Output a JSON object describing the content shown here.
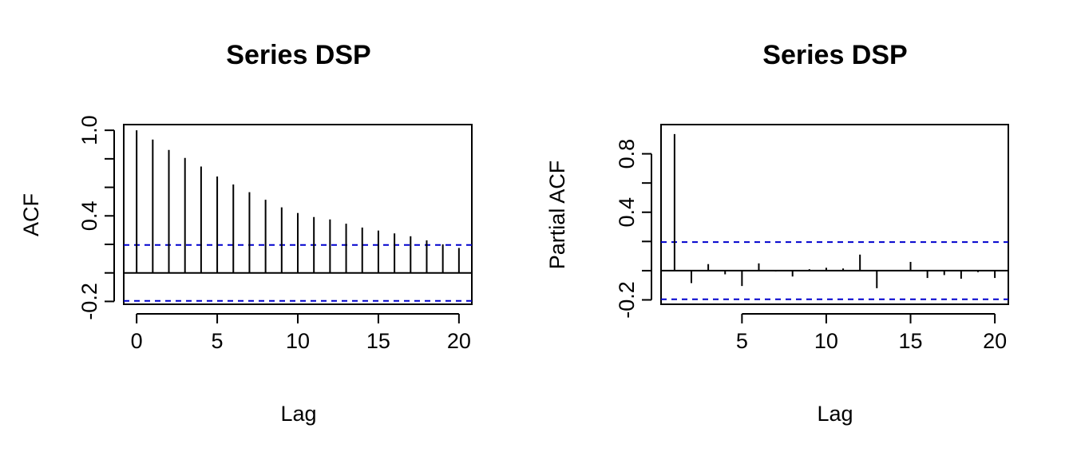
{
  "chart_data": [
    {
      "type": "bar",
      "subtype": "acf",
      "title": "Series  DSP",
      "xlabel": "Lag",
      "ylabel": "ACF",
      "xlim": [
        -0.8,
        20.8
      ],
      "ylim": [
        -0.22,
        1.04
      ],
      "x_ticks": [
        0,
        5,
        10,
        15,
        20
      ],
      "y_ticks": [
        "-0.2",
        "0.4",
        "1.0"
      ],
      "y_tick_values": [
        -0.2,
        0.0,
        0.2,
        0.4,
        0.6,
        0.8,
        1.0
      ],
      "confidence_bound": 0.196,
      "x": [
        0,
        1,
        2,
        3,
        4,
        5,
        6,
        7,
        8,
        9,
        10,
        11,
        12,
        13,
        14,
        15,
        16,
        17,
        18,
        19,
        20
      ],
      "values": [
        1.0,
        0.935,
        0.862,
        0.806,
        0.746,
        0.676,
        0.62,
        0.566,
        0.513,
        0.46,
        0.42,
        0.392,
        0.375,
        0.345,
        0.318,
        0.297,
        0.277,
        0.257,
        0.228,
        0.2,
        0.175
      ],
      "colors": {
        "stem": "#000000",
        "bound": "#0000cd",
        "zero": "#000000"
      }
    },
    {
      "type": "bar",
      "subtype": "pacf",
      "title": "Series  DSP",
      "xlabel": "Lag",
      "ylabel": "Partial ACF",
      "xlim": [
        0.2,
        20.8
      ],
      "ylim": [
        -0.23,
        1.0
      ],
      "x_ticks": [
        5,
        10,
        15,
        20
      ],
      "y_ticks": [
        "-0.2",
        "0.4",
        "0.8"
      ],
      "y_tick_values": [
        -0.2,
        0.0,
        0.2,
        0.4,
        0.6,
        0.8
      ],
      "confidence_bound": 0.196,
      "x": [
        1,
        2,
        3,
        4,
        5,
        6,
        7,
        8,
        9,
        10,
        11,
        12,
        13,
        14,
        15,
        16,
        17,
        18,
        19,
        20
      ],
      "values": [
        0.935,
        -0.085,
        0.045,
        -0.025,
        -0.105,
        0.05,
        -0.005,
        -0.04,
        0.01,
        0.02,
        0.015,
        0.11,
        -0.12,
        0.0,
        0.06,
        -0.05,
        -0.03,
        -0.055,
        -0.01,
        -0.05
      ],
      "colors": {
        "stem": "#000000",
        "bound": "#0000cd",
        "zero": "#000000"
      }
    }
  ]
}
